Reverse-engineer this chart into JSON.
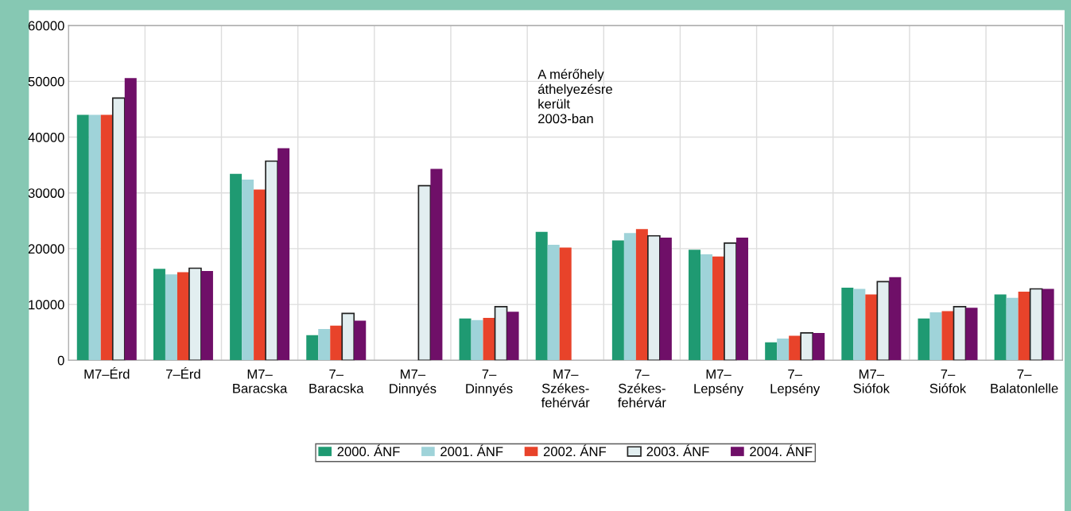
{
  "chart_data": {
    "type": "bar",
    "categories": [
      "M7–Érd",
      "7–Érd",
      "M7–\nBaracska",
      "7–\nBaracska",
      "M7–\nDinnyés",
      "7–\nDinnyés",
      "M7–\nSzékes-\nfehérvár",
      "7–\nSzékes-\nfehérvár",
      "M7–\nLepsény",
      "7–\nLepsény",
      "M7–\nSiófok",
      "7–\nSiófok",
      "7–\nBalatonlelle"
    ],
    "series": [
      {
        "name": "2000. ÁNF",
        "color": "#1f9a72",
        "values": [
          44000,
          16400,
          33400,
          4500,
          null,
          7500,
          23000,
          21500,
          19800,
          3200,
          13000,
          7500,
          11800
        ]
      },
      {
        "name": "2001. ÁNF",
        "color": "#9fd3d9",
        "values": [
          44000,
          15400,
          32400,
          5600,
          null,
          7200,
          20700,
          22800,
          19000,
          3900,
          12800,
          8600,
          11200
        ]
      },
      {
        "name": "2002. ÁNF",
        "color": "#e8432a",
        "values": [
          44000,
          15800,
          30600,
          6200,
          null,
          7600,
          20200,
          23500,
          18600,
          4400,
          11800,
          8800,
          12300
        ]
      },
      {
        "name": "2003. ÁNF",
        "color": "#e2eef0",
        "values": [
          47000,
          16500,
          35700,
          8400,
          31300,
          9600,
          null,
          22300,
          21000,
          4900,
          14100,
          9600,
          12800
        ]
      },
      {
        "name": "2004. ÁNF",
        "color": "#6f0f68",
        "values": [
          50600,
          16000,
          38000,
          7100,
          34300,
          8700,
          null,
          22000,
          22000,
          4900,
          14900,
          9400,
          12800
        ]
      }
    ],
    "ylim": [
      0,
      60000
    ],
    "yticks": [
      0,
      10000,
      20000,
      30000,
      40000,
      50000,
      60000
    ],
    "grid": true,
    "legend": "bottom",
    "annotations": [
      "A mérőhely\náthelyezésre\nkerült\n2003-ban"
    ]
  }
}
